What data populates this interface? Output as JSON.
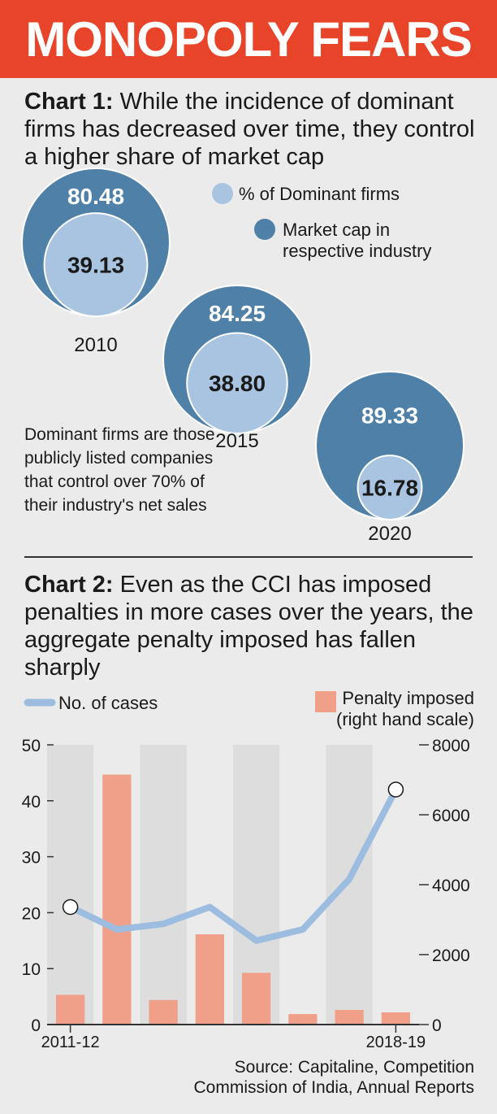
{
  "banner": {
    "title": "MONOPOLY FEARS"
  },
  "chart1": {
    "label": "Chart 1:",
    "title": " While the incidence of dominant firms has decreased over time, they control a higher share of market cap",
    "note": "Dominant firms are those publicly listed companies that control over 70% of their industry's net sales"
  },
  "chart2": {
    "label": "Chart 2:",
    "title": " Even as the CCI has imposed penalties in more cases over the years, the aggregate penalty imposed has fallen sharply"
  },
  "source": {
    "line1": "Source: Capitaline, Competition",
    "line2": "Commission of India, Annual Reports"
  },
  "colors": {
    "accent": "#e8442a",
    "outer_circle": "#4f80a8",
    "inner_circle": "#a8c4e0",
    "bar": "#f0a088",
    "line": "#9dbde0"
  },
  "chart_data": [
    {
      "type": "bubble",
      "legend": [
        {
          "label": "% of Dominant firms",
          "color": "#a8c4e0"
        },
        {
          "label": "Market cap in respective industry",
          "color": "#4f80a8"
        }
      ],
      "categories": [
        "2010",
        "2015",
        "2020"
      ],
      "series": [
        {
          "name": "Market cap in respective industry",
          "values": [
            80.48,
            84.25,
            89.33
          ],
          "labels": [
            "80.48",
            "84.25",
            "89.33"
          ]
        },
        {
          "name": "% of Dominant firms",
          "values": [
            39.13,
            38.8,
            16.78
          ],
          "labels": [
            "39.13",
            "38.80",
            "16.78"
          ]
        }
      ]
    },
    {
      "type": "bar+line",
      "legend_line": "No. of cases",
      "legend_bar": [
        "Penalty imposed",
        "(right hand scale)"
      ],
      "x_labels": [
        "2011-12",
        "2018-19"
      ],
      "x_count": 8,
      "left_axis": {
        "ticks": [
          "0",
          "10",
          "20",
          "30",
          "40",
          "50"
        ],
        "ylim": [
          0,
          50
        ]
      },
      "right_axis": {
        "ticks": [
          "0",
          "2000",
          "4000",
          "6000",
          "8000"
        ],
        "ylim": [
          0,
          8000
        ]
      },
      "series": [
        {
          "name": "Penalty imposed",
          "kind": "bar",
          "axis": "right",
          "values": [
            850,
            7150,
            700,
            2580,
            1480,
            300,
            420,
            350
          ]
        },
        {
          "name": "No. of cases",
          "kind": "line",
          "axis": "left",
          "values": [
            21,
            17,
            18,
            21,
            15,
            17,
            26,
            42
          ]
        }
      ]
    }
  ]
}
